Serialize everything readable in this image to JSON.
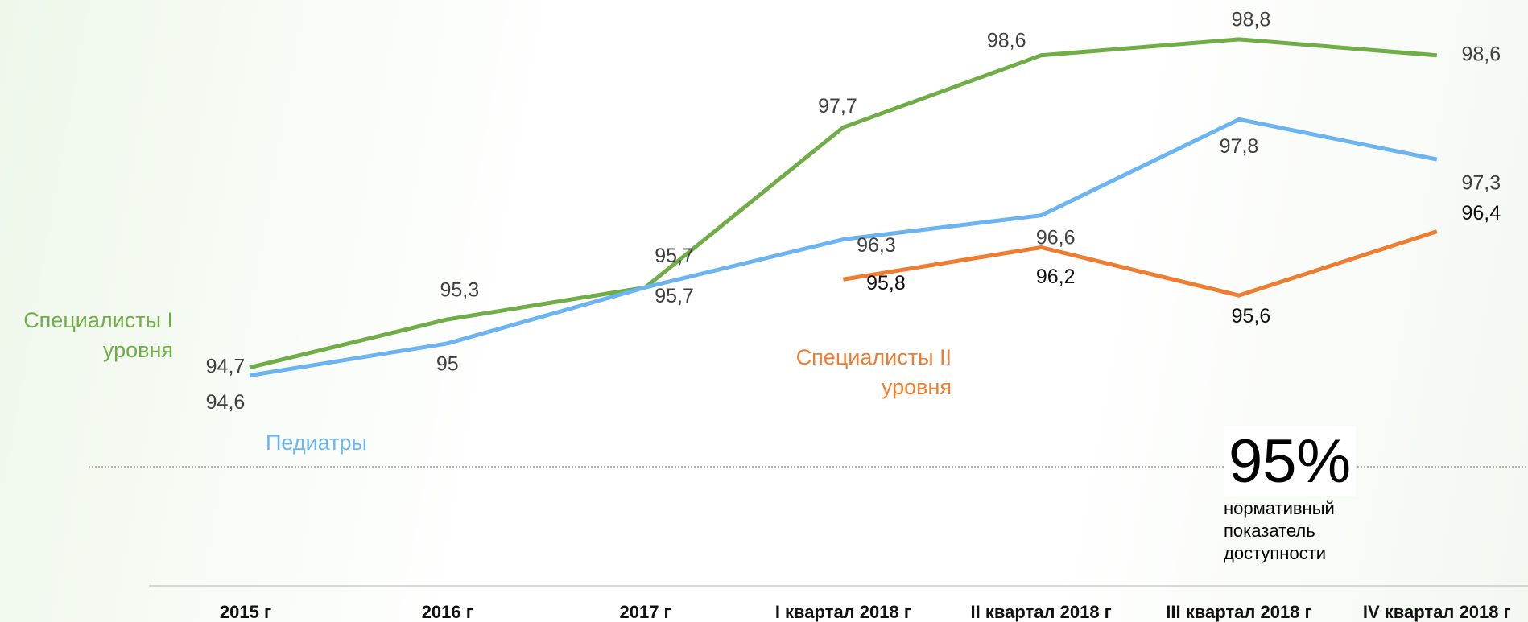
{
  "chart_data": {
    "type": "line",
    "categories": [
      "2015 г",
      "2016 г",
      "2017 г",
      "I квартал 2018 г",
      "II квартал 2018 г",
      "III квартал 2018 г",
      "IV квартал 2018 г"
    ],
    "ylim": [
      93.5,
      99
    ],
    "grid": false,
    "series": [
      {
        "name": "Специалисты I уровня",
        "color": "#70ad47",
        "values": [
          94.7,
          95.3,
          95.7,
          97.7,
          98.6,
          98.8,
          98.6
        ],
        "value_labels": [
          "94,7",
          "95,3",
          "95,7",
          "97,7",
          "98,6",
          "98,8",
          "98,6"
        ]
      },
      {
        "name": "Педиатры",
        "color": "#6cb4f0",
        "values": [
          94.6,
          95,
          95.7,
          96.3,
          96.6,
          97.8,
          97.3
        ],
        "value_labels": [
          "94,6",
          "95",
          "95,7",
          "96,3",
          "96,6",
          "97,8",
          "97,3"
        ]
      },
      {
        "name": "Специалисты II уровня",
        "color": "#ed7d31",
        "values": [
          null,
          null,
          null,
          95.8,
          96.2,
          95.6,
          96.4
        ],
        "value_labels": [
          null,
          null,
          null,
          "95,8",
          "96,2",
          "95,6",
          "96,4"
        ]
      }
    ],
    "annotation": {
      "title": "95%",
      "text": "нормативный показатель доступности"
    }
  }
}
